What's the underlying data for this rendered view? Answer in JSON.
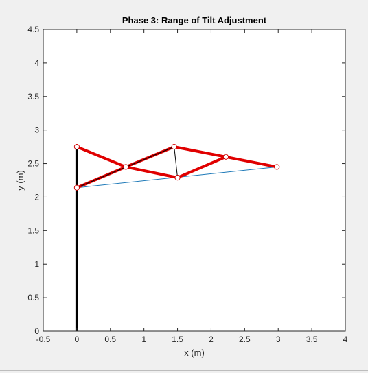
{
  "chart_data": {
    "type": "line",
    "title": "Phase 3: Range of Tilt Adjustment",
    "xlabel": "x (m)",
    "ylabel": "y (m)",
    "xlim": [
      -0.5,
      4
    ],
    "ylim": [
      0,
      4.5
    ],
    "xticks": [
      "-0.5",
      "0",
      "0.5",
      "1",
      "1.5",
      "2",
      "2.5",
      "3",
      "3.5",
      "4"
    ],
    "yticks": [
      "0",
      "0.5",
      "1",
      "1.5",
      "2",
      "2.5",
      "3",
      "3.5",
      "4",
      "4.5"
    ],
    "grid": false,
    "colors": {
      "post": "#000000",
      "truss": "#e00000",
      "thin_link": "#000000",
      "base_link": "#1f7ab8",
      "joint_edge": "#d00000",
      "joint_fill": "#ffffff"
    },
    "post": {
      "x": [
        0,
        0
      ],
      "y": [
        0,
        2.75
      ]
    },
    "truss_members": [
      {
        "x": [
          0,
          0.73
        ],
        "y": [
          2.75,
          2.45
        ]
      },
      {
        "x": [
          0,
          0.73
        ],
        "y": [
          2.14,
          2.45
        ]
      },
      {
        "x": [
          0.73,
          1.45
        ],
        "y": [
          2.45,
          2.75
        ]
      },
      {
        "x": [
          0.73,
          1.5
        ],
        "y": [
          2.45,
          2.29
        ]
      },
      {
        "x": [
          1.45,
          2.22
        ],
        "y": [
          2.75,
          2.6
        ]
      },
      {
        "x": [
          1.5,
          2.22
        ],
        "y": [
          2.29,
          2.6
        ]
      },
      {
        "x": [
          2.22,
          2.98
        ],
        "y": [
          2.6,
          2.45
        ]
      }
    ],
    "thin_links": [
      {
        "x": [
          1.45,
          1.5
        ],
        "y": [
          2.75,
          2.29
        ]
      },
      {
        "x": [
          0,
          1.45
        ],
        "y": [
          2.14,
          2.75
        ]
      }
    ],
    "base_link": {
      "x": [
        0,
        2.98
      ],
      "y": [
        2.14,
        2.45
      ]
    },
    "joints": [
      {
        "x": 0,
        "y": 2.75
      },
      {
        "x": 0,
        "y": 2.14
      },
      {
        "x": 0.73,
        "y": 2.45
      },
      {
        "x": 1.45,
        "y": 2.75
      },
      {
        "x": 1.5,
        "y": 2.29
      },
      {
        "x": 2.22,
        "y": 2.6
      },
      {
        "x": 2.98,
        "y": 2.45
      }
    ]
  }
}
